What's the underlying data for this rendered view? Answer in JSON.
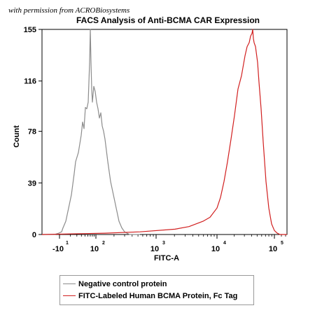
{
  "credit": "with permission from ACROBiosystems",
  "chart_data": {
    "type": "line",
    "title": "FACS Analysis of Anti-BCMA CAR Expression",
    "xlabel": "FITC-A",
    "ylabel": "Count",
    "xscale": "biexponential",
    "ylim": [
      0,
      155
    ],
    "ytick_labels": [
      "0",
      "39",
      "78",
      "116",
      "155"
    ],
    "xtick_labels": [
      {
        "base": "-10",
        "exp": "1"
      },
      {
        "base": "10",
        "exp": "2"
      },
      {
        "base": "10",
        "exp": "3"
      },
      {
        "base": "10",
        "exp": "4"
      },
      {
        "base": "10",
        "exp": "5"
      }
    ],
    "legend": "bottom",
    "grid": false,
    "series": [
      {
        "name": "Negative control protein",
        "color": "#8c8c8c",
        "x": [
          60,
          70,
          78,
          84,
          88,
          90,
          94,
          98,
          102,
          106,
          108,
          112,
          116,
          118,
          120,
          122,
          124,
          126,
          128,
          129,
          130,
          131,
          132,
          134,
          136,
          138,
          140,
          142,
          144,
          146,
          148,
          150,
          154,
          158,
          162,
          166,
          170,
          174,
          178,
          185,
          200
        ],
        "y": [
          0,
          0,
          0,
          1,
          2,
          5,
          10,
          20,
          30,
          46,
          55,
          62,
          75,
          85,
          80,
          96,
          95,
          100,
          130,
          155,
          130,
          110,
          100,
          112,
          108,
          100,
          95,
          88,
          92,
          82,
          78,
          72,
          55,
          40,
          30,
          20,
          10,
          5,
          2,
          0,
          0
        ]
      },
      {
        "name": "FITC-Labeled Human BCMA Protein, Fc Tag",
        "color": "#d11f1f",
        "x": [
          60,
          150,
          200,
          250,
          270,
          290,
          300,
          310,
          315,
          320,
          325,
          330,
          335,
          340,
          345,
          350,
          353,
          356,
          358,
          360,
          361,
          362,
          363,
          365,
          368,
          370,
          373,
          376,
          380,
          384,
          388,
          392,
          396,
          400,
          410
        ],
        "y": [
          0,
          1,
          2,
          4,
          6,
          10,
          13,
          20,
          28,
          40,
          55,
          72,
          90,
          110,
          120,
          135,
          142,
          145,
          150,
          152,
          155,
          148,
          145,
          142,
          130,
          115,
          95,
          70,
          40,
          20,
          8,
          3,
          1,
          0,
          0
        ]
      }
    ]
  }
}
